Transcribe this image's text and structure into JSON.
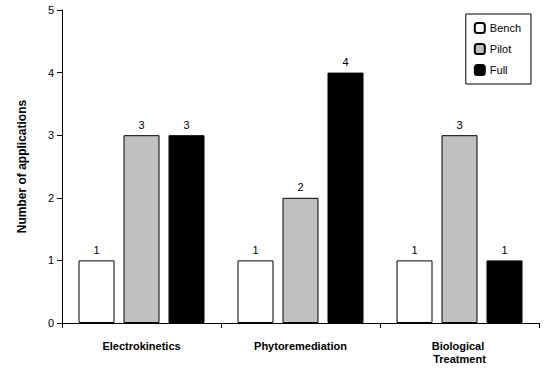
{
  "chart_data": {
    "type": "bar",
    "categories": [
      "Electrokinetics",
      "Phytoremediation",
      "Biological Treatment"
    ],
    "series": [
      {
        "name": "Bench",
        "color": "#ffffff",
        "values": [
          1,
          1,
          1
        ]
      },
      {
        "name": "Pilot",
        "color": "#c0c0c0",
        "values": [
          3,
          2,
          3
        ]
      },
      {
        "name": "Full",
        "color": "#000000",
        "values": [
          3,
          4,
          1
        ]
      }
    ],
    "y_label": "Number of applications",
    "ylim": [
      0,
      5
    ],
    "yticks": [
      0,
      1,
      2,
      3,
      4,
      5
    ],
    "grid": false,
    "legend": "upper right",
    "data_labels": true
  }
}
